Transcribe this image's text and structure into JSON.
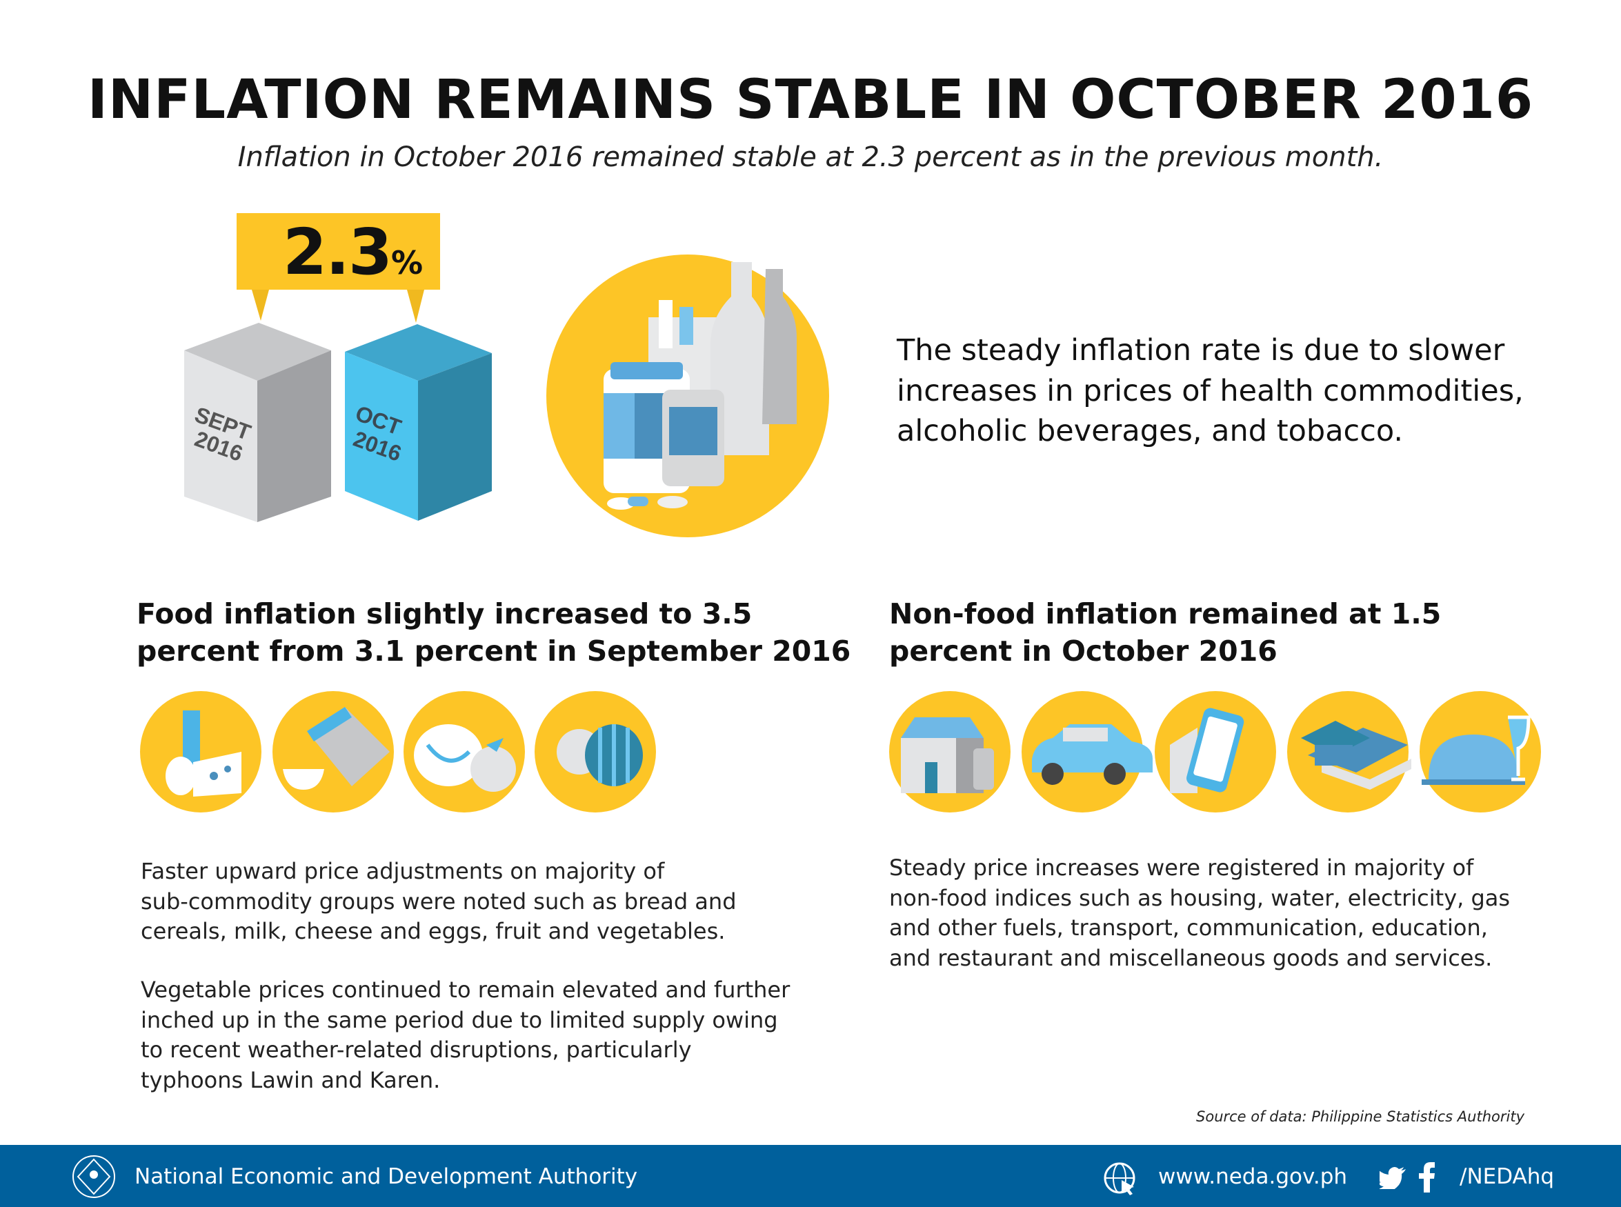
{
  "title": "INFLATION REMAINS STABLE IN OCTOBER 2016",
  "subtitle": "Inflation in October 2016 remained stable at 2.3 percent as in the previous month.",
  "callout": {
    "value": "2.3",
    "unit": "%"
  },
  "cubes": [
    {
      "month": "SEPT",
      "year": "2016",
      "color": "#e3e4e6"
    },
    {
      "month": "OCT",
      "year": "2016",
      "color": "#4cc4ee"
    }
  ],
  "colors": {
    "yellow": "#fdc526",
    "blue": "#4cb4e6",
    "footer": "#00609c"
  },
  "reason_lines": [
    "The steady inflation rate is due to slower",
    "increases in prices of health commodities,",
    "alcoholic beverages, and tobacco."
  ],
  "food": {
    "heading_lines": [
      "Food inflation slightly increased to 3.5",
      "percent from 3.1 percent in September 2016"
    ],
    "icons": [
      "milk-cheese-eggs-icon",
      "bread-cereals-icon",
      "fish-fruit-icon",
      "vegetables-icon"
    ],
    "para1_lines": [
      "Faster upward price adjustments on majority of",
      "sub-commodity groups were noted such as bread and",
      "cereals, milk, cheese and eggs, fruit and vegetables."
    ],
    "para2_lines": [
      "Vegetable prices continued to remain elevated and further",
      "inched up in the same period due to limited supply owing",
      "to recent weather-related disruptions, particularly",
      "typhoons Lawin and Karen."
    ]
  },
  "nonfood": {
    "heading_lines": [
      "Non-food inflation remained at 1.5",
      "percent in October 2016"
    ],
    "icons": [
      "housing-utilities-icon",
      "car-icon",
      "phone-icon",
      "education-icon",
      "restaurant-icon"
    ],
    "para_lines": [
      "Steady price increases were registered in majority of",
      "non-food indices such as housing, water, electricity, gas",
      "and other fuels, transport, communication, education,",
      "and restaurant and miscellaneous goods and services."
    ]
  },
  "source": "Source of data: Philippine Statistics Authority",
  "footer": {
    "org": "National Economic and Development Authority",
    "website": "www.neda.gov.ph",
    "social": "/NEDAhq"
  }
}
